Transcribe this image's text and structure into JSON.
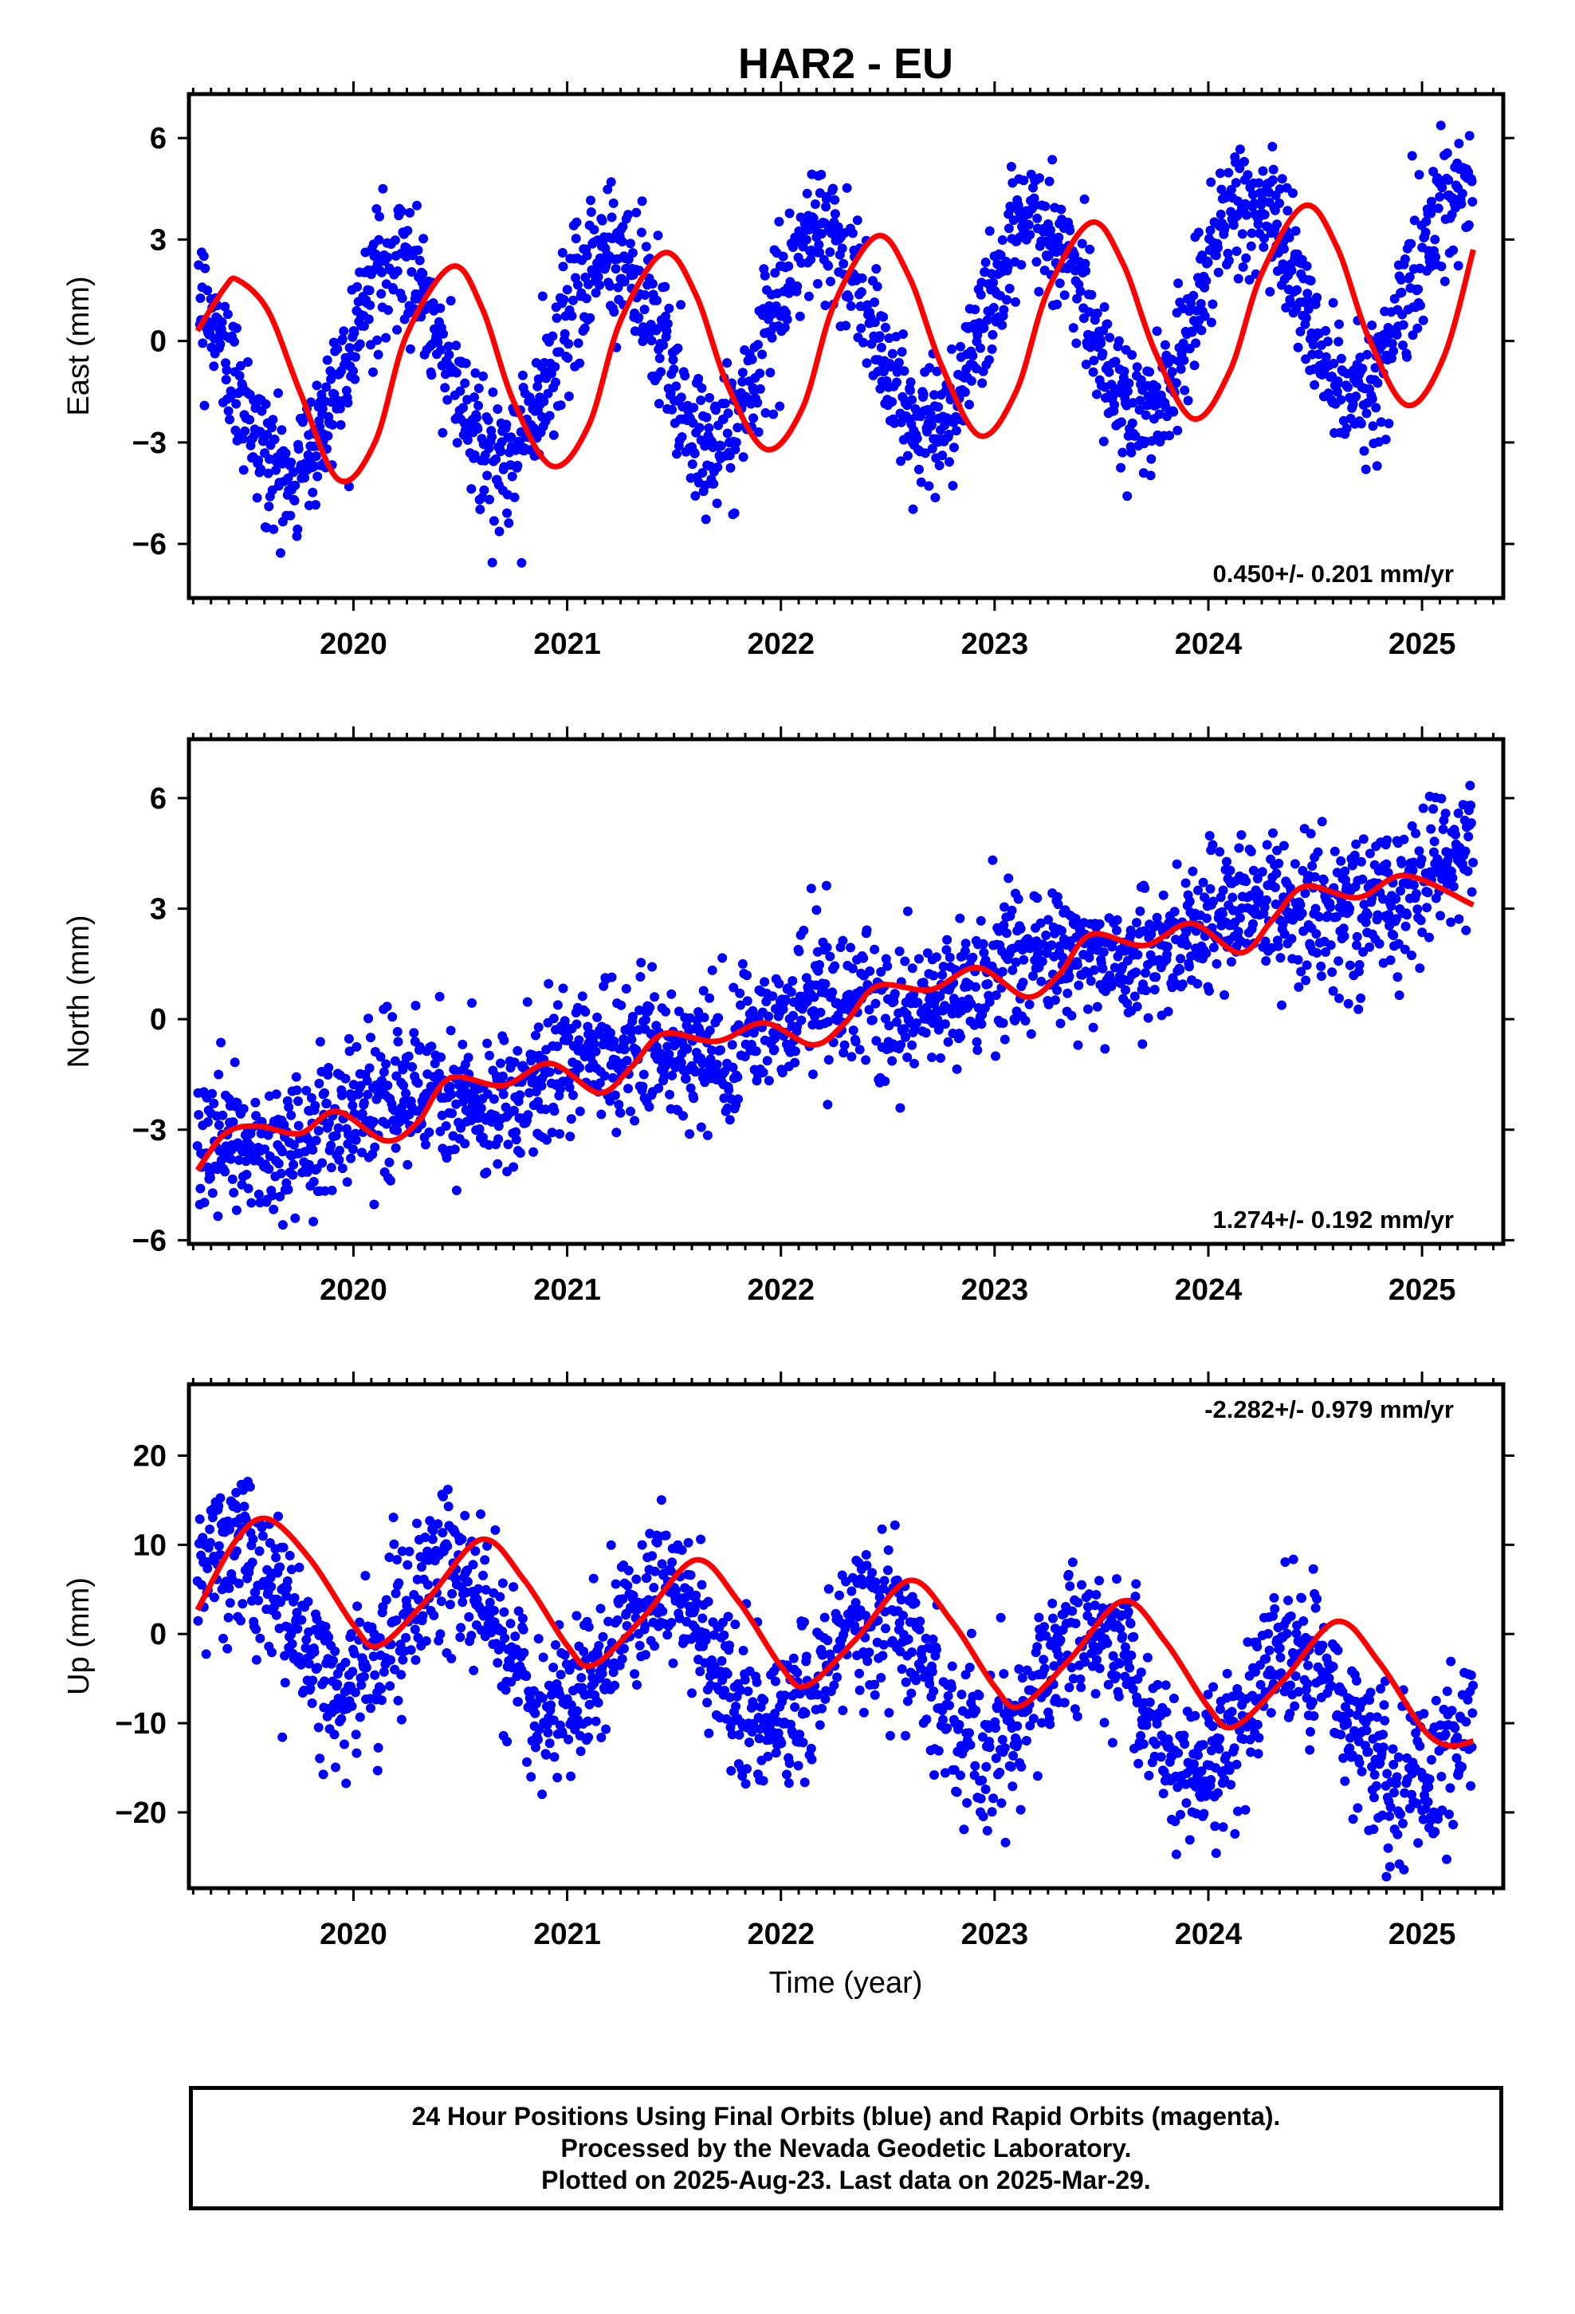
{
  "chart_data": {
    "type": "scatter",
    "title": "HAR2 - EU",
    "xlabel": "Time (year)",
    "colors": {
      "final_orbits": "#0000ff",
      "fit": "#ff0000"
    },
    "x_ticks": [
      "2020",
      "2021",
      "2022",
      "2023",
      "2024",
      "2025"
    ],
    "xlim": [
      2019.23,
      2025.38
    ],
    "data_range": [
      2019.27,
      2025.24
    ],
    "panels": [
      {
        "name": "east",
        "ylabel": "East (mm)",
        "ylim": [
          -7.6,
          7.3
        ],
        "yticks": [
          -6,
          -3,
          0,
          3,
          6
        ],
        "ytick_labels": [
          "−6",
          "−3",
          "0",
          "3",
          "6"
        ],
        "rate_text": "0.450+/- 0.201 mm/yr",
        "rate_position": "bottom-right",
        "model": {
          "offset": -1.15,
          "rate": 0.45,
          "annual_cos": 1.1,
          "annual_sin": 2.8
        },
        "scatter_sd": 1.0,
        "fit_line": [
          [
            2019.27,
            0.3
          ],
          [
            2019.4,
            1.6
          ],
          [
            2019.46,
            1.8
          ],
          [
            2019.6,
            0.9
          ],
          [
            2019.75,
            -1.5
          ],
          [
            2019.93,
            -4.1
          ],
          [
            2020.1,
            -3.0
          ],
          [
            2020.25,
            0.2
          ],
          [
            2020.46,
            2.2
          ],
          [
            2020.6,
            1.0
          ],
          [
            2020.75,
            -1.8
          ],
          [
            2020.93,
            -3.7
          ],
          [
            2021.1,
            -2.5
          ],
          [
            2021.25,
            0.6
          ],
          [
            2021.45,
            2.6
          ],
          [
            2021.6,
            1.4
          ],
          [
            2021.75,
            -1.3
          ],
          [
            2021.93,
            -3.2
          ],
          [
            2022.1,
            -2.0
          ],
          [
            2022.25,
            1.1
          ],
          [
            2022.45,
            3.1
          ],
          [
            2022.6,
            1.9
          ],
          [
            2022.75,
            -0.7
          ],
          [
            2022.93,
            -2.8
          ],
          [
            2023.1,
            -1.5
          ],
          [
            2023.25,
            1.5
          ],
          [
            2023.45,
            3.5
          ],
          [
            2023.6,
            2.3
          ],
          [
            2023.75,
            -0.3
          ],
          [
            2023.93,
            -2.3
          ],
          [
            2024.1,
            -0.9
          ],
          [
            2024.25,
            2.0
          ],
          [
            2024.45,
            4.0
          ],
          [
            2024.6,
            2.8
          ],
          [
            2024.75,
            0.1
          ],
          [
            2024.93,
            -1.9
          ],
          [
            2025.1,
            -0.5
          ],
          [
            2025.24,
            2.7
          ]
        ]
      },
      {
        "name": "north",
        "ylabel": "North (mm)",
        "ylim": [
          -6.1,
          7.6
        ],
        "yticks": [
          -6,
          -3,
          0,
          3,
          6
        ],
        "ytick_labels": [
          "−6",
          "−3",
          "0",
          "3",
          "6"
        ],
        "rate_text": "1.274+/- 0.192 mm/yr",
        "rate_position": "bottom-right",
        "model": {
          "offset": -3.6,
          "rate": 1.274,
          "annual_cos": 0.2,
          "annual_sin": 0.35
        },
        "scatter_sd": 0.95,
        "fit_line": [
          [
            2019.27,
            -4.1
          ],
          [
            2019.4,
            -3.1
          ],
          [
            2019.55,
            -2.9
          ],
          [
            2019.75,
            -3.1
          ],
          [
            2019.92,
            -2.5
          ],
          [
            2020.15,
            -3.3
          ],
          [
            2020.3,
            -2.8
          ],
          [
            2020.45,
            -1.6
          ],
          [
            2020.7,
            -1.8
          ],
          [
            2020.92,
            -1.2
          ],
          [
            2021.15,
            -2.0
          ],
          [
            2021.3,
            -1.3
          ],
          [
            2021.45,
            -0.4
          ],
          [
            2021.7,
            -0.6
          ],
          [
            2021.92,
            -0.1
          ],
          [
            2022.15,
            -0.7
          ],
          [
            2022.3,
            -0.1
          ],
          [
            2022.45,
            0.9
          ],
          [
            2022.7,
            0.8
          ],
          [
            2022.92,
            1.4
          ],
          [
            2023.15,
            0.6
          ],
          [
            2023.3,
            1.2
          ],
          [
            2023.45,
            2.3
          ],
          [
            2023.7,
            2.0
          ],
          [
            2023.92,
            2.6
          ],
          [
            2024.15,
            1.8
          ],
          [
            2024.3,
            2.7
          ],
          [
            2024.45,
            3.6
          ],
          [
            2024.7,
            3.3
          ],
          [
            2024.92,
            3.9
          ],
          [
            2025.24,
            3.1
          ]
        ]
      },
      {
        "name": "up",
        "ylabel": "Up (mm)",
        "ylim": [
          -28.5,
          28
        ],
        "yticks": [
          -20,
          -10,
          0,
          10,
          20
        ],
        "ytick_labels": [
          "−20",
          "−10",
          "0",
          "10",
          "20"
        ],
        "rate_text": "-2.282+/- 0.979 mm/yr",
        "rate_position": "top-right",
        "model": {
          "offset": 2.7,
          "rate": -2.282,
          "annual_cos": -6.6,
          "annual_sin": 2.6
        },
        "scatter_sd": 4.2,
        "fit_line": [
          [
            2019.27,
            2.7
          ],
          [
            2019.45,
            10.5
          ],
          [
            2019.6,
            12.9
          ],
          [
            2019.8,
            8.3
          ],
          [
            2020.0,
            1.0
          ],
          [
            2020.12,
            -1.3
          ],
          [
            2020.35,
            4.0
          ],
          [
            2020.6,
            10.6
          ],
          [
            2020.8,
            6.0
          ],
          [
            2021.0,
            -1.3
          ],
          [
            2021.12,
            -3.5
          ],
          [
            2021.35,
            1.7
          ],
          [
            2021.6,
            8.3
          ],
          [
            2021.8,
            3.7
          ],
          [
            2022.0,
            -3.6
          ],
          [
            2022.12,
            -5.8
          ],
          [
            2022.35,
            -0.6
          ],
          [
            2022.6,
            6.0
          ],
          [
            2022.8,
            1.4
          ],
          [
            2023.0,
            -5.9
          ],
          [
            2023.12,
            -8.1
          ],
          [
            2023.35,
            -2.9
          ],
          [
            2023.6,
            3.7
          ],
          [
            2023.8,
            -0.9
          ],
          [
            2024.0,
            -8.2
          ],
          [
            2024.12,
            -10.4
          ],
          [
            2024.35,
            -5.2
          ],
          [
            2024.6,
            1.4
          ],
          [
            2024.8,
            -3.2
          ],
          [
            2025.0,
            -10.5
          ],
          [
            2025.12,
            -12.5
          ],
          [
            2025.24,
            -12.0
          ]
        ]
      }
    ]
  },
  "footer": {
    "line1": "24 Hour Positions Using Final Orbits (blue) and Rapid Orbits (magenta).",
    "line2": "Processed by the Nevada Geodetic Laboratory.",
    "line3": "Plotted on 2025-Aug-23. Last data on 2025-Mar-29."
  }
}
